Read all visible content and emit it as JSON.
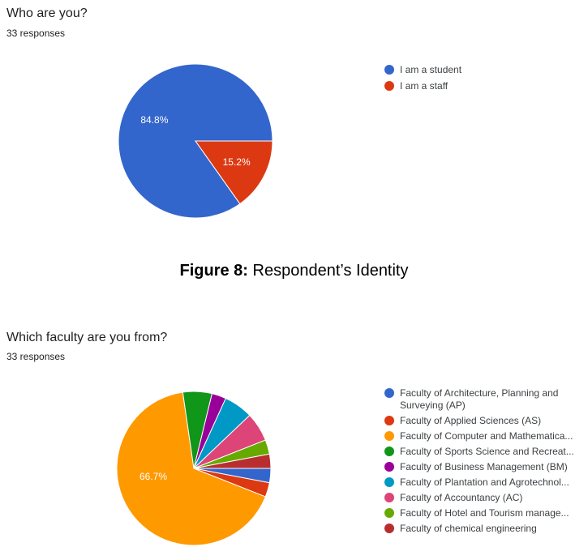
{
  "figure_caption": {
    "label": "Figure 8:",
    "text": " Respondent’s Identity"
  },
  "chart_data": [
    {
      "type": "pie",
      "title": "Who are you?",
      "subtitle": "33 responses",
      "legend_position": "right",
      "series": [
        {
          "name": "I am a student",
          "value": 84.8,
          "label": "84.8%",
          "color": "#3366cc"
        },
        {
          "name": "I am a staff",
          "value": 15.2,
          "label": "15.2%",
          "color": "#dc3912"
        }
      ]
    },
    {
      "type": "pie",
      "title": "Which faculty are you from?",
      "subtitle": "33 responses",
      "legend_position": "right",
      "series": [
        {
          "name": "Faculty of Architecture, Planning and Surveying (AP)",
          "value": 3.0,
          "label": "",
          "color": "#3366cc"
        },
        {
          "name": "Faculty of Applied Sciences (AS)",
          "value": 3.0,
          "label": "",
          "color": "#dc3912"
        },
        {
          "name": "Faculty of Computer and Mathematica...",
          "value": 66.7,
          "label": "66.7%",
          "color": "#ff9900"
        },
        {
          "name": "Faculty of Sports Science and Recreat...",
          "value": 6.1,
          "label": "",
          "color": "#109618"
        },
        {
          "name": "Faculty of Business Management (BM)",
          "value": 3.0,
          "label": "",
          "color": "#990099"
        },
        {
          "name": "Faculty of Plantation and Agrotechnol...",
          "value": 6.1,
          "label": "",
          "color": "#0099c6"
        },
        {
          "name": "Faculty of Accountancy (AC)",
          "value": 6.1,
          "label": "",
          "color": "#dd4477"
        },
        {
          "name": "Faculty of Hotel and Tourism manage...",
          "value": 3.0,
          "label": "",
          "color": "#66aa00"
        },
        {
          "name": "Faculty of chemical engineering",
          "value": 3.0,
          "label": "",
          "color": "#b82e2e"
        }
      ]
    }
  ]
}
